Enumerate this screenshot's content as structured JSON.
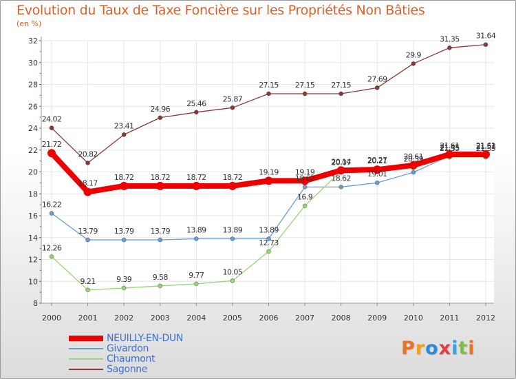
{
  "title": "Evolution du Taux de Taxe Foncière sur les Propriétés Non Bâties",
  "unit_label": "(en %)",
  "logo": {
    "text": "Proxiti",
    "colors": [
      "#e8742a",
      "#f0a020",
      "#2a8ad8",
      "#e04040",
      "#3aa0e0",
      "#80c040",
      "#e8742a"
    ]
  },
  "chart_data": {
    "type": "line",
    "title": "Evolution du Taux de Taxe Foncière sur les Propriétés Non Bâties",
    "ylabel": "(en %)",
    "xlabel": "",
    "ylim": [
      8,
      32
    ],
    "yticks": [
      "8",
      "10",
      "12",
      "14",
      "16",
      "18",
      "20",
      "22",
      "24",
      "26",
      "28",
      "30",
      "32"
    ],
    "categories": [
      "2000",
      "2001",
      "2002",
      "2003",
      "2004",
      "2005",
      "2006",
      "2007",
      "2008",
      "2009",
      "2010",
      "2011",
      "2012"
    ],
    "grid": true,
    "legend": "bottom-left",
    "series": [
      {
        "name": "Sagonne",
        "color": "#8b3a3a",
        "values": [
          24.02,
          20.82,
          23.41,
          24.96,
          25.46,
          25.87,
          27.15,
          27.15,
          27.15,
          27.69,
          29.9,
          31.35,
          31.64
        ],
        "labels": [
          "24.02",
          "20.82",
          "23.41",
          "24.96",
          "25.46",
          "25.87",
          "27.15",
          "27.15",
          "27.15",
          "27.69",
          "29.9",
          "31.35",
          "31.64"
        ]
      },
      {
        "name": "Givardon",
        "color": "#6a9fd4",
        "values": [
          16.22,
          13.79,
          13.79,
          13.79,
          13.89,
          13.89,
          13.89,
          18.62,
          18.62,
          19.01,
          19.96,
          21.45,
          21.53
        ],
        "labels": [
          "16.22",
          "13.79",
          "13.79",
          "13.79",
          "13.89",
          "13.89",
          "13.89",
          "18.62",
          "18.62",
          "19.01",
          "",
          "21.45",
          "21.53"
        ]
      },
      {
        "name": "Chaumont",
        "color": "#9ad47a",
        "values": [
          12.26,
          9.21,
          9.39,
          9.58,
          9.77,
          10.05,
          12.73,
          16.9,
          20.07,
          20.27,
          20.39,
          21.35,
          21.35
        ],
        "labels": [
          "12.26",
          "9.21",
          "9.39",
          "9.58",
          "9.77",
          "10.05",
          "12.73",
          "16.9",
          "20.07",
          "20.27",
          "20.39",
          "21.35",
          "21.35"
        ]
      },
      {
        "name": "NEUILLY-EN-DUN",
        "color": "#ee0000",
        "values": [
          21.72,
          18.17,
          18.72,
          18.72,
          18.72,
          18.72,
          19.19,
          19.19,
          20.14,
          20.21,
          20.61,
          21.61,
          21.61
        ],
        "labels": [
          "21.72",
          "18.17",
          "18.72",
          "18.72",
          "18.72",
          "18.72",
          "19.19",
          "19.19",
          "20.14",
          "20.21",
          "20.61",
          "21.61",
          "21.61"
        ]
      }
    ],
    "legend_entries": [
      {
        "name": "NEUILLY-EN-DUN",
        "color": "#ee0000",
        "thick": true
      },
      {
        "name": "Givardon",
        "color": "#6a9fd4",
        "thick": false
      },
      {
        "name": "Chaumont",
        "color": "#9ad47a",
        "thick": false
      },
      {
        "name": "Sagonne",
        "color": "#8b3a3a",
        "thick": false
      }
    ]
  }
}
